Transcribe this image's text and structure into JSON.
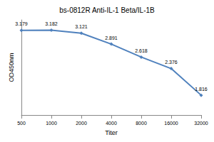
{
  "chart_data": {
    "type": "line",
    "title": "bs-0812R Anti-IL-1 Beta/IL-1B",
    "x_label": "Titer",
    "y_label": "OD450nm",
    "categories": [
      "500",
      "1000",
      "2000",
      "4000",
      "8000",
      "16000",
      "32000"
    ],
    "values": [
      3.179,
      3.182,
      3.121,
      2.891,
      2.618,
      2.376,
      1.816
    ],
    "color": "#4f81bd",
    "marker": "diamond",
    "ylim": [
      1.4,
      3.4
    ],
    "tick_labels": "x",
    "grid": false,
    "data_labels": true
  }
}
